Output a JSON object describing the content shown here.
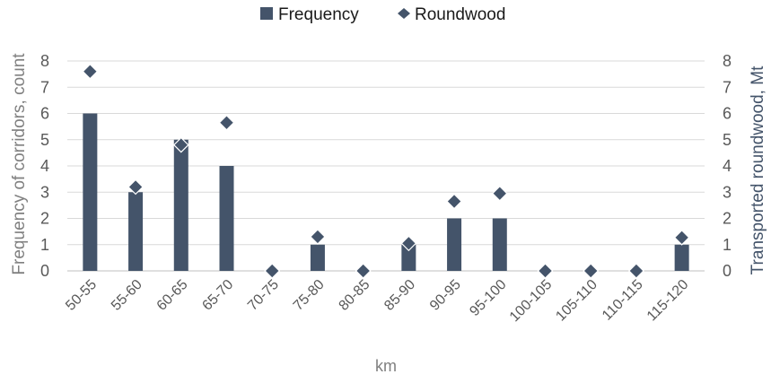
{
  "colors": {
    "series": "#44546a",
    "grid": "#d9d9d9",
    "axis": "#bfbfbf"
  },
  "chart_data": {
    "type": "bar",
    "categories": [
      "50-55",
      "55-60",
      "60-65",
      "65-70",
      "70-75",
      "75-80",
      "80-85",
      "85-90",
      "90-95",
      "95-100",
      "100-105",
      "105-110",
      "110-115",
      "115-120"
    ],
    "series": [
      {
        "name": "Frequency",
        "kind": "bar",
        "axis": "left",
        "values": [
          6,
          3,
          5,
          4,
          0,
          1,
          0,
          1,
          2,
          2,
          0,
          0,
          0,
          1
        ]
      },
      {
        "name": "Roundwood",
        "kind": "marker",
        "marker": "diamond",
        "axis": "right",
        "values": [
          7.6,
          3.2,
          4.8,
          5.65,
          0,
          1.3,
          0,
          1.05,
          2.65,
          2.95,
          0,
          0,
          0,
          1.27
        ]
      }
    ],
    "xlabel": "km",
    "ylabel": "Frequency of corridors, count",
    "y2label": "Transported roundwood, Mt",
    "ylim": [
      0,
      8
    ],
    "y2lim": [
      0,
      8
    ],
    "yticks": [
      "0",
      "1",
      "2",
      "3",
      "4",
      "5",
      "6",
      "7",
      "8"
    ],
    "y2ticks": [
      "0",
      "1",
      "2",
      "3",
      "4",
      "5",
      "6",
      "7",
      "8"
    ],
    "grid": true,
    "legend": "top-center"
  }
}
